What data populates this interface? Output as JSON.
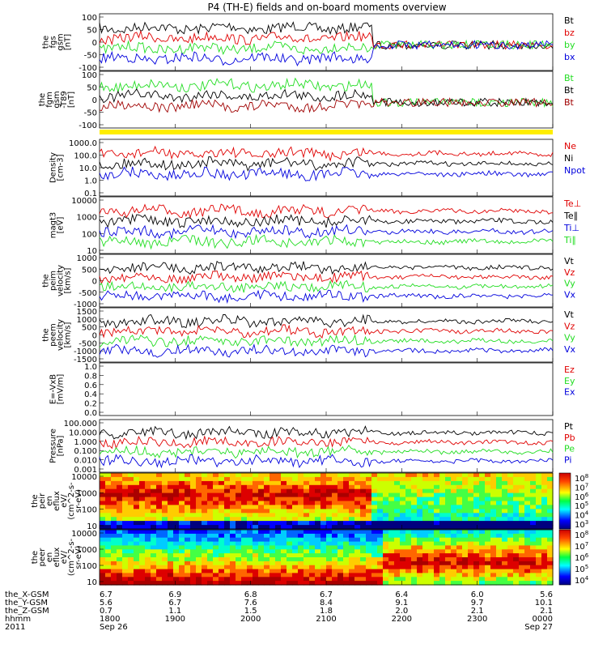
{
  "title": "P4 (TH-E) fields and on-board moments overview",
  "colors": {
    "black": "#000000",
    "red": "#e00000",
    "darkred": "#a00000",
    "green": "#22dd22",
    "blue": "#0000dd",
    "yellow": "#ffee00"
  },
  "chart_data": [
    {
      "id": "fgs",
      "type": "line",
      "ylabel": [
        "the",
        "fgs",
        "gsm",
        "[nT]"
      ],
      "yticks": [
        "100",
        "50",
        "0",
        "-50",
        "-100"
      ],
      "ylim": [
        -100,
        100
      ],
      "legend": [
        {
          "name": "Bt",
          "color": "black"
        },
        {
          "name": "bz",
          "color": "red"
        },
        {
          "name": "by",
          "color": "green"
        },
        {
          "name": "bx",
          "color": "blue"
        }
      ]
    },
    {
      "id": "fgm",
      "type": "line",
      "ylabel": [
        "the",
        "fgm",
        "gsm",
        "-T89",
        "[nT]"
      ],
      "yticks": [
        "100",
        "50",
        "0",
        "-50",
        "-100"
      ],
      "ylim": [
        -120,
        100
      ],
      "legend": [
        {
          "name": "Bt",
          "color": "green"
        },
        {
          "name": "Bt",
          "color": "black"
        },
        {
          "name": "Bt",
          "color": "darkred"
        }
      ]
    },
    {
      "id": "bar",
      "type": "bar"
    },
    {
      "id": "density",
      "type": "line",
      "scale": "log",
      "ylabel": [
        "Density",
        "[cm-3]"
      ],
      "yticks": [
        "1000.0",
        "100.0",
        "10.0",
        "1.0",
        "0.1"
      ],
      "ylim": [
        0.1,
        1000
      ],
      "legend": [
        {
          "name": "Ne",
          "color": "red"
        },
        {
          "name": "Ni",
          "color": "black"
        },
        {
          "name": "Npot",
          "color": "blue"
        }
      ]
    },
    {
      "id": "temp",
      "type": "line",
      "scale": "log",
      "ylabel": [
        "magt3",
        "[eV]"
      ],
      "yticks": [
        "10000",
        "1000",
        "100",
        "10"
      ],
      "ylim": [
        10,
        10000
      ],
      "legend": [
        {
          "name": "Te⊥",
          "color": "red"
        },
        {
          "name": "Te∥",
          "color": "black"
        },
        {
          "name": "Ti⊥",
          "color": "blue"
        },
        {
          "name": "Ti∥",
          "color": "green"
        }
      ]
    },
    {
      "id": "peim",
      "type": "line",
      "ylabel": [
        "the",
        "peim",
        "velocity",
        "[km/s]"
      ],
      "yticks": [
        "1000",
        "500",
        "0",
        "-500",
        "-1000"
      ],
      "ylim": [
        -1000,
        1000
      ],
      "legend": [
        {
          "name": "Vt",
          "color": "black"
        },
        {
          "name": "Vz",
          "color": "red"
        },
        {
          "name": "Vy",
          "color": "green"
        },
        {
          "name": "Vx",
          "color": "blue"
        }
      ]
    },
    {
      "id": "peem",
      "type": "line",
      "ylabel": [
        "the",
        "peem",
        "velocity",
        "[km/s]"
      ],
      "yticks": [
        "1500",
        "1000",
        "500",
        "0",
        "-500",
        "-1000",
        "-1500"
      ],
      "ylim": [
        -1500,
        1500
      ],
      "legend": [
        {
          "name": "Vt",
          "color": "black"
        },
        {
          "name": "Vz",
          "color": "red"
        },
        {
          "name": "Vy",
          "color": "green"
        },
        {
          "name": "Vx",
          "color": "blue"
        }
      ]
    },
    {
      "id": "efield",
      "type": "line",
      "ylabel": [
        "E=-VxB",
        "[mV/m]"
      ],
      "yticks": [
        "1.0",
        "0.8",
        "0.6",
        "0.4",
        "0.2",
        "0.0"
      ],
      "ylim": [
        0,
        1
      ],
      "legend": [
        {
          "name": "Ez",
          "color": "red"
        },
        {
          "name": "Ey",
          "color": "green"
        },
        {
          "name": "Ex",
          "color": "blue"
        }
      ]
    },
    {
      "id": "pressure",
      "type": "line",
      "scale": "log",
      "ylabel": [
        "Pressure",
        "[nPa]"
      ],
      "yticks": [
        "100.000",
        "10.000",
        "1.000",
        "0.100",
        "0.010",
        "0.001"
      ],
      "ylim": [
        0.001,
        100
      ],
      "legend": [
        {
          "name": "Pt",
          "color": "black"
        },
        {
          "name": "Pb",
          "color": "red"
        },
        {
          "name": "Pe",
          "color": "green"
        },
        {
          "name": "Pi",
          "color": "blue"
        }
      ]
    },
    {
      "id": "peir",
      "type": "heatmap",
      "scale": "log",
      "ylabel": [
        "the",
        "peir",
        "en",
        "eflux",
        "eV/",
        "(cm^2-s-",
        "sr-eV)"
      ],
      "yticks": [
        "10000",
        "1000",
        "100",
        "10"
      ],
      "ylim": [
        5,
        30000
      ],
      "colorbar": [
        "10^8",
        "10^7",
        "10^6",
        "10^5",
        "10^4",
        "10^3"
      ]
    },
    {
      "id": "peer",
      "type": "heatmap",
      "scale": "log",
      "ylabel": [
        "the",
        "peer",
        "en",
        "eflux",
        "eV/",
        "(cm^2-s-",
        "sr-eV)"
      ],
      "yticks": [
        "10000",
        "1000",
        "100",
        "10"
      ],
      "ylim": [
        5,
        30000
      ],
      "colorbar": [
        "10^8",
        "10^7",
        "10^6",
        "10^5",
        "10^4"
      ]
    }
  ],
  "xaxis": {
    "rows": [
      {
        "label": "the_X-GSM",
        "values": [
          "6.7",
          "6.9",
          "6.8",
          "6.7",
          "6.4",
          "6.0",
          "5.6"
        ]
      },
      {
        "label": "the_Y-GSM",
        "values": [
          "5.6",
          "6.7",
          "7.6",
          "8.4",
          "9.1",
          "9.7",
          "10.1"
        ]
      },
      {
        "label": "the_Z-GSM",
        "values": [
          "0.7",
          "1.1",
          "1.5",
          "1.8",
          "2.0",
          "2.1",
          "2.1"
        ]
      },
      {
        "label": "hhmm",
        "values": [
          "1800",
          "1900",
          "2000",
          "2100",
          "2200",
          "2300",
          "0000"
        ]
      },
      {
        "label": "2011",
        "values": [
          "Sep 26",
          "",
          "",
          "",
          "",
          "",
          "Sep 27"
        ]
      }
    ]
  }
}
